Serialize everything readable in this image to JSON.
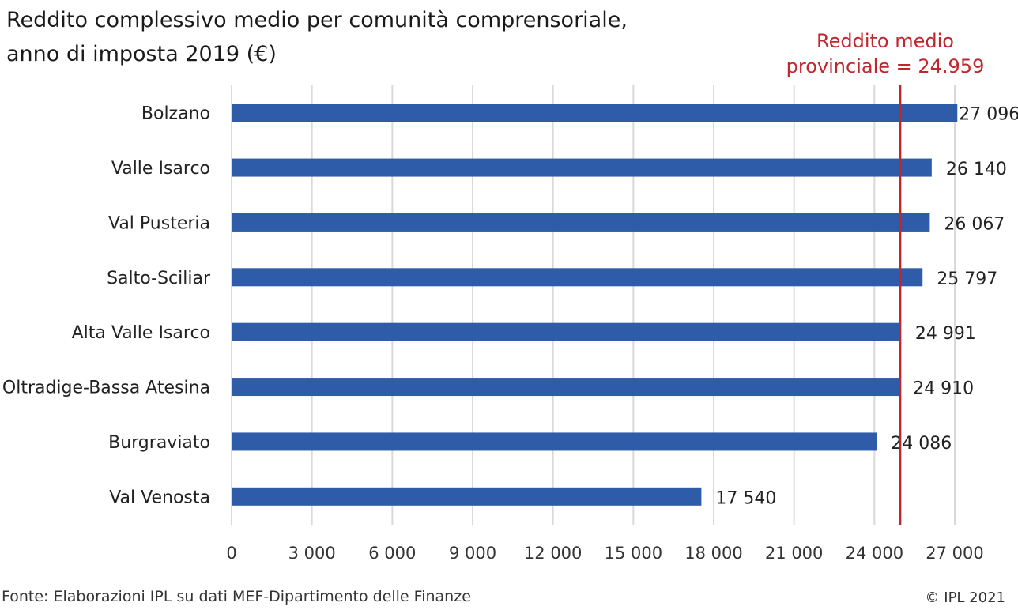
{
  "title": {
    "line1": "Reddito complessivo medio per comunità comprensoriale,",
    "line2": "anno di imposta 2019 (€)"
  },
  "reference": {
    "label_line1": "Reddito medio",
    "label_line2": "provinciale = 24.959",
    "value": 24959,
    "color": "#c0272d"
  },
  "colors": {
    "bar": "#2e5ca8",
    "grid": "#d9d9d9"
  },
  "chart_data": {
    "type": "bar",
    "orientation": "horizontal",
    "categories": [
      "Bolzano",
      "Valle Isarco",
      "Val Pusteria",
      "Salto-Sciliar",
      "Alta Valle Isarco",
      "Oltradige-Bassa Atesina",
      "Burgraviato",
      "Val Venosta"
    ],
    "values": [
      27096,
      26140,
      26067,
      25797,
      24991,
      24910,
      24086,
      17540
    ],
    "value_labels": [
      "27 096",
      "26 140",
      "26 067",
      "25 797",
      "24 991",
      "24 910",
      "24 086",
      "17 540"
    ],
    "x_ticks": [
      0,
      3000,
      6000,
      9000,
      12000,
      15000,
      18000,
      21000,
      24000,
      27000
    ],
    "x_tick_labels": [
      "0",
      "3 000",
      "6 000",
      "9 000",
      "12 000",
      "15 000",
      "18 000",
      "21 000",
      "24 000",
      "27 000"
    ],
    "xlim": [
      0,
      27000
    ],
    "grid": true,
    "xlabel": "",
    "ylabel": ""
  },
  "footer": {
    "source": "Fonte: Elaborazioni IPL su dati MEF-Dipartimento delle Finanze",
    "copyright": "© IPL 2021"
  }
}
